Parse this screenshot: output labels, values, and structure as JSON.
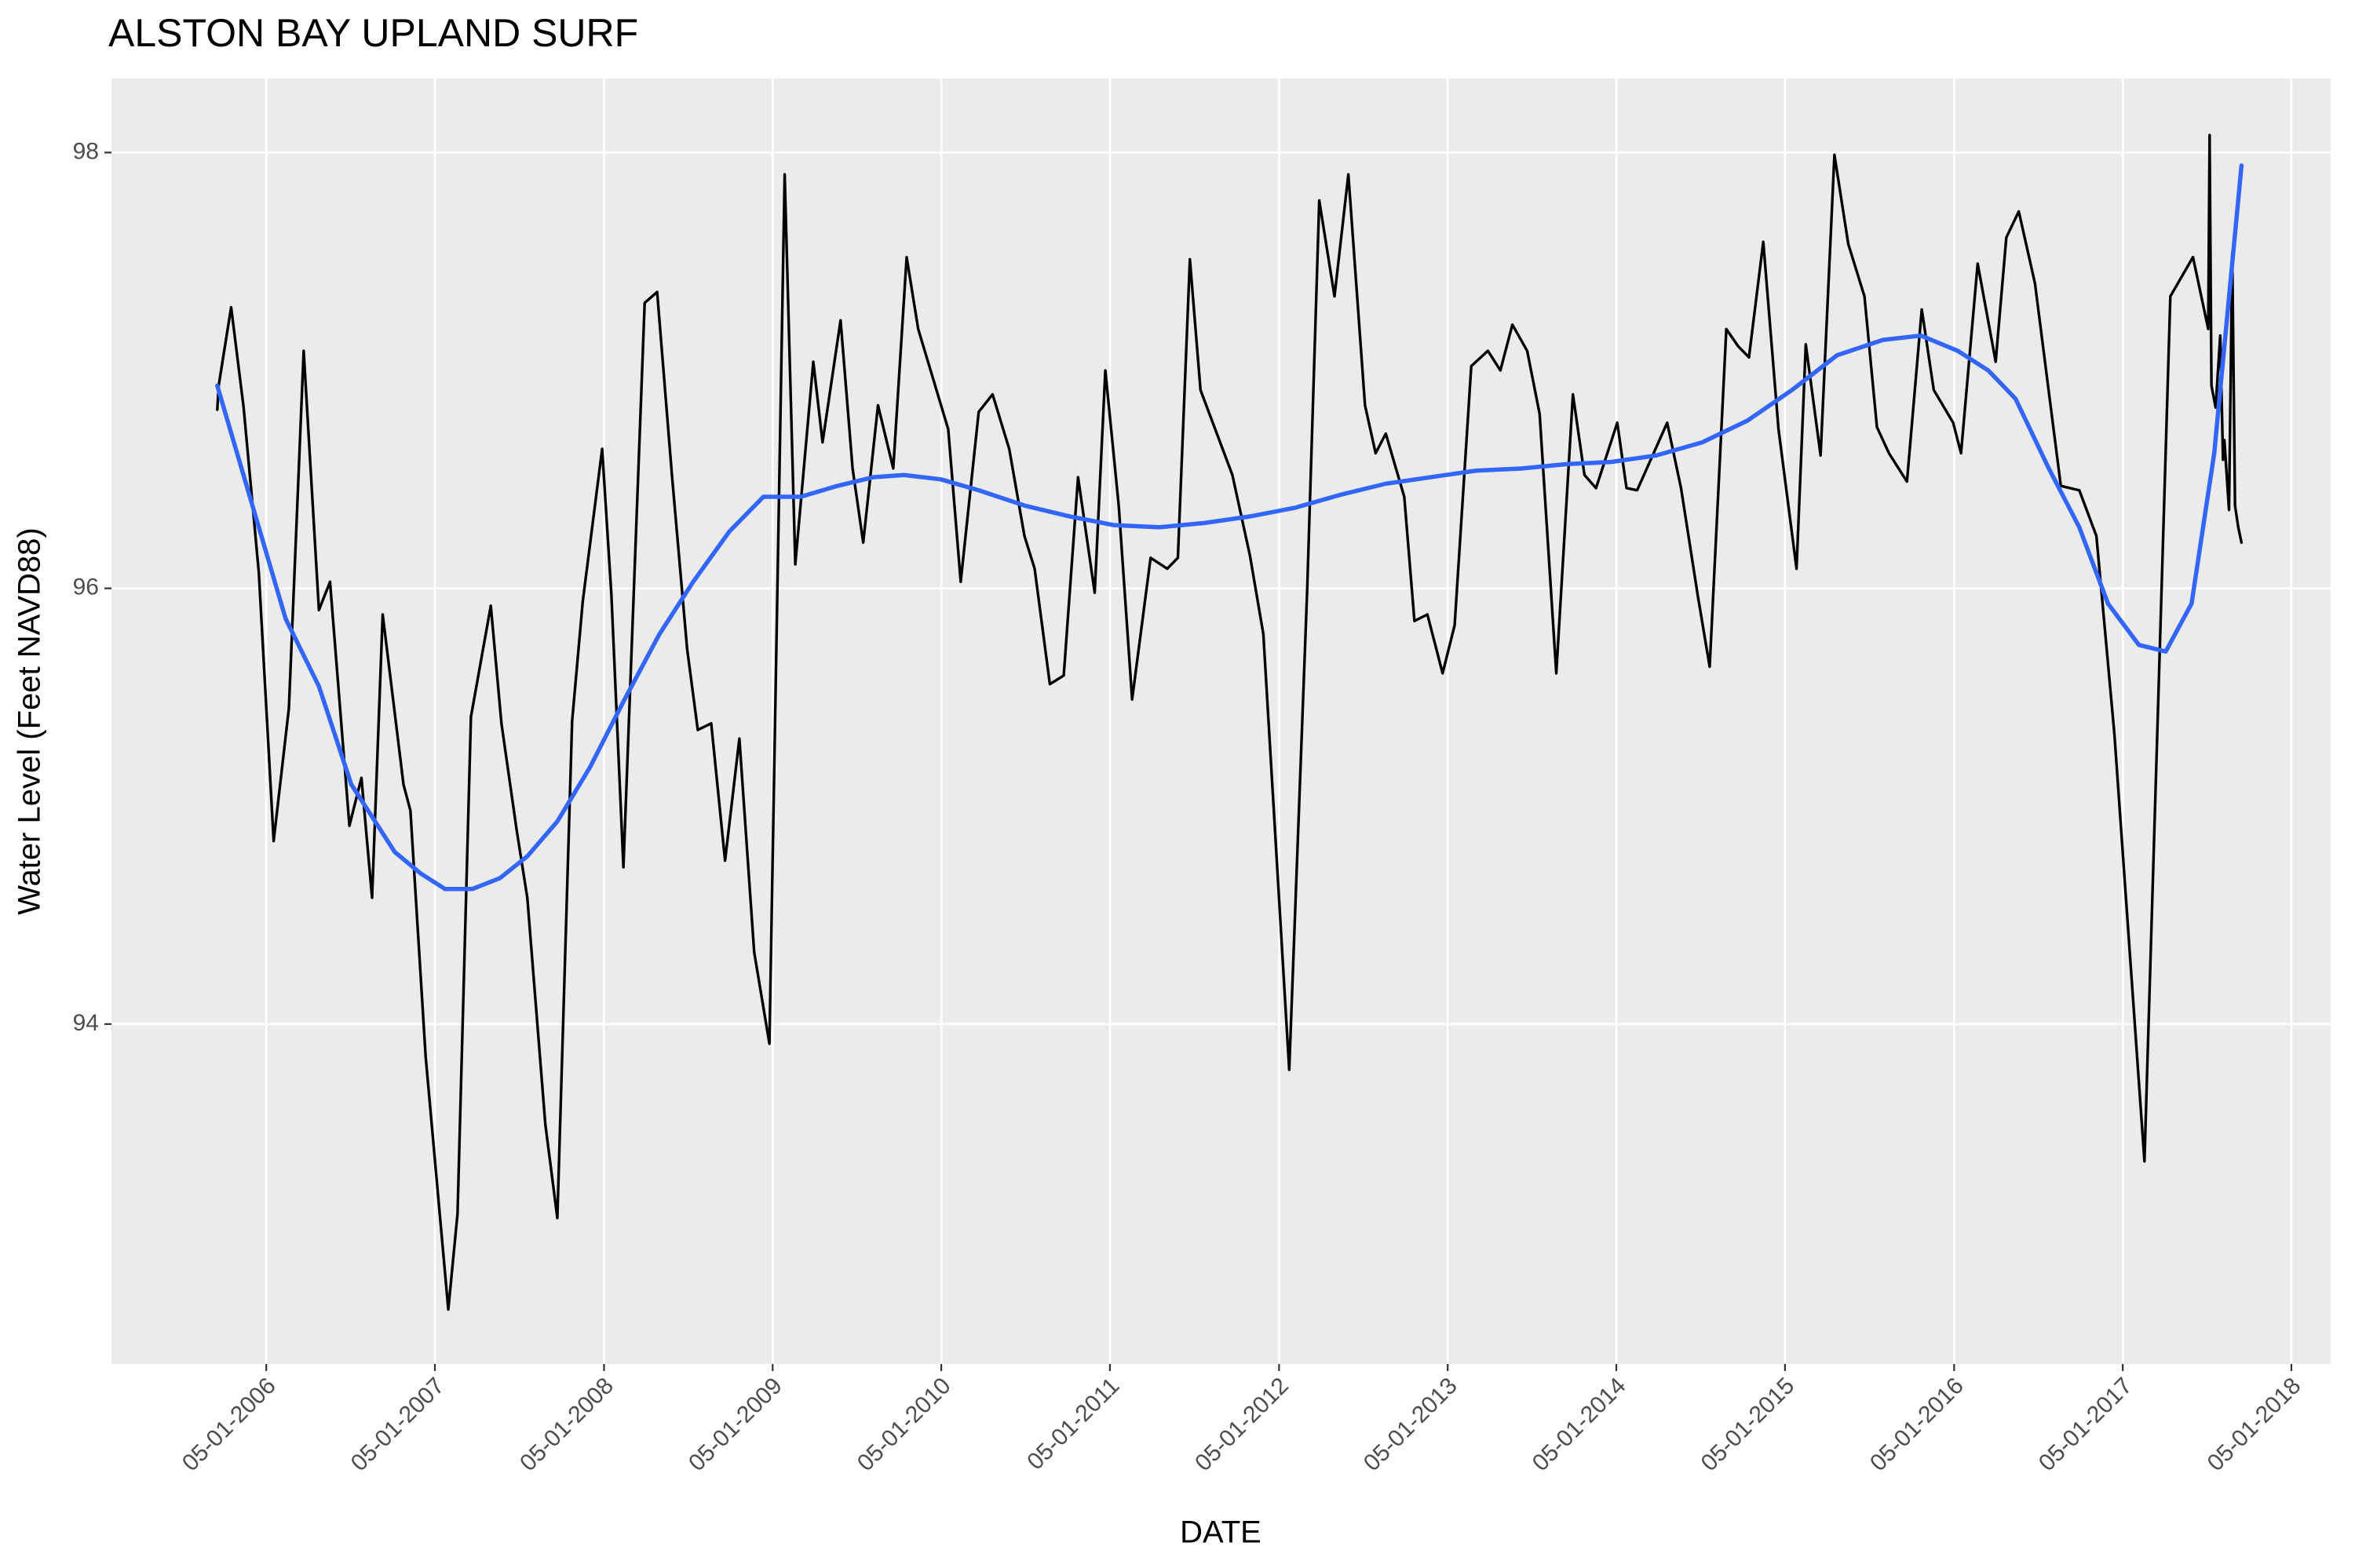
{
  "chart_data": {
    "type": "line",
    "title": "ALSTON BAY UPLAND SURF",
    "x_label": "DATE",
    "y_label": "Water Level (Feet NAVD88)",
    "xlim": [
      "2005-05-31",
      "2018-07-25"
    ],
    "ylim": [
      92.44,
      98.34
    ],
    "xticks": [
      {
        "value": "2006-05-01",
        "label": "05-01-2006"
      },
      {
        "value": "2007-05-01",
        "label": "05-01-2007"
      },
      {
        "value": "2008-05-01",
        "label": "05-01-2008"
      },
      {
        "value": "2009-05-01",
        "label": "05-01-2009"
      },
      {
        "value": "2010-05-01",
        "label": "05-01-2010"
      },
      {
        "value": "2011-05-01",
        "label": "05-01-2011"
      },
      {
        "value": "2012-05-01",
        "label": "05-01-2012"
      },
      {
        "value": "2013-05-01",
        "label": "05-01-2013"
      },
      {
        "value": "2014-05-01",
        "label": "05-01-2014"
      },
      {
        "value": "2015-05-01",
        "label": "05-01-2015"
      },
      {
        "value": "2016-05-01",
        "label": "05-01-2016"
      },
      {
        "value": "2017-05-01",
        "label": "05-01-2017"
      },
      {
        "value": "2018-05-01",
        "label": "05-01-2018"
      }
    ],
    "yticks": [
      94,
      96,
      98
    ],
    "grid": true,
    "series": [
      {
        "color": "#000000",
        "x": [
          "2006-01-15",
          "2006-01-18",
          "2006-02-14",
          "2006-03-13",
          "2006-04-15",
          "2006-05-17",
          "2006-06-19",
          "2006-07-21",
          "2006-08-23",
          "2006-09-16",
          "2006-10-28",
          "2006-11-23",
          "2006-12-16",
          "2007-01-08",
          "2007-02-22",
          "2007-03-09",
          "2007-04-11",
          "2007-05-30",
          "2007-06-19",
          "2007-07-18",
          "2007-08-30",
          "2007-09-22",
          "2007-10-25",
          "2007-11-17",
          "2007-12-26",
          "2008-01-21",
          "2008-02-22",
          "2008-03-16",
          "2008-04-27",
          "2008-05-17",
          "2008-06-12",
          "2008-07-28",
          "2008-08-24",
          "2008-09-25",
          "2008-10-28",
          "2008-11-20",
          "2008-12-19",
          "2009-01-18",
          "2009-02-18",
          "2009-03-22",
          "2009-04-24",
          "2009-05-27",
          "2009-06-19",
          "2009-07-28",
          "2009-08-17",
          "2009-09-25",
          "2009-10-21",
          "2009-11-13",
          "2009-12-15",
          "2010-01-17",
          "2010-02-15",
          "2010-03-12",
          "2010-05-16",
          "2010-06-12",
          "2010-07-21",
          "2010-08-20",
          "2010-09-25",
          "2010-10-28",
          "2010-11-19",
          "2010-12-22",
          "2011-01-21",
          "2011-02-21",
          "2011-03-29",
          "2011-04-21",
          "2011-05-20",
          "2011-06-18",
          "2011-07-28",
          "2011-09-02",
          "2011-09-25",
          "2011-10-21",
          "2011-11-13",
          "2012-01-21",
          "2012-02-28",
          "2012-03-28",
          "2012-05-23",
          "2012-07-01",
          "2012-07-27",
          "2012-08-29",
          "2012-09-28",
          "2012-11-03",
          "2012-11-26",
          "2012-12-18",
          "2013-01-27",
          "2013-02-18",
          "2013-03-18",
          "2013-04-20",
          "2013-05-16",
          "2013-06-21",
          "2013-07-27",
          "2013-08-23",
          "2013-09-18",
          "2013-10-20",
          "2013-11-16",
          "2013-12-22",
          "2014-01-27",
          "2014-02-21",
          "2014-03-18",
          "2014-05-03",
          "2014-05-23",
          "2014-06-15",
          "2014-08-19",
          "2014-09-18",
          "2014-10-24",
          "2014-11-19",
          "2014-12-25",
          "2015-01-20",
          "2015-02-12",
          "2015-03-15",
          "2015-04-17",
          "2015-05-26",
          "2015-06-15",
          "2015-07-17",
          "2015-08-16",
          "2015-09-15",
          "2015-10-20",
          "2015-11-16",
          "2015-12-12",
          "2016-01-20",
          "2016-02-21",
          "2016-03-18",
          "2016-04-29",
          "2016-05-16",
          "2016-06-21",
          "2016-07-30",
          "2016-08-22",
          "2016-09-18",
          "2016-10-23",
          "2016-12-18",
          "2017-01-27",
          "2017-03-05",
          "2017-04-13",
          "2017-06-17",
          "2017-08-12",
          "2017-09-30",
          "2017-11-02",
          "2017-11-05",
          "2017-11-09",
          "2017-11-18",
          "2017-11-28",
          "2017-12-04",
          "2017-12-07",
          "2017-12-17",
          "2017-12-24",
          "2017-12-30",
          "2018-01-06",
          "2018-01-13"
        ],
        "values": [
          96.82,
          96.93,
          97.29,
          96.83,
          96.07,
          94.84,
          95.45,
          97.09,
          95.9,
          96.03,
          94.91,
          95.13,
          94.58,
          95.88,
          95.1,
          94.98,
          93.85,
          92.69,
          93.13,
          95.41,
          95.92,
          95.38,
          94.89,
          94.58,
          93.54,
          93.11,
          95.39,
          95.94,
          96.64,
          95.97,
          94.72,
          97.31,
          97.36,
          96.52,
          95.72,
          95.35,
          95.38,
          94.75,
          95.31,
          94.33,
          93.91,
          97.9,
          96.11,
          97.04,
          96.67,
          97.23,
          96.55,
          96.21,
          96.84,
          96.55,
          97.52,
          97.19,
          96.73,
          96.03,
          96.81,
          96.89,
          96.64,
          96.24,
          96.09,
          95.56,
          95.6,
          96.51,
          95.98,
          97.0,
          96.38,
          95.49,
          96.14,
          96.09,
          96.14,
          97.51,
          96.91,
          96.52,
          96.15,
          95.79,
          93.79,
          96.0,
          97.78,
          97.34,
          97.9,
          96.84,
          96.62,
          96.71,
          96.42,
          95.85,
          95.88,
          95.61,
          95.83,
          97.02,
          97.09,
          97.0,
          97.21,
          97.09,
          96.8,
          95.61,
          96.89,
          96.52,
          96.46,
          96.76,
          96.46,
          96.45,
          96.76,
          96.46,
          95.97,
          95.64,
          97.19,
          97.11,
          97.06,
          97.59,
          96.73,
          96.09,
          97.12,
          96.61,
          97.99,
          97.58,
          97.34,
          96.74,
          96.62,
          96.49,
          97.28,
          96.91,
          96.76,
          96.62,
          97.49,
          97.04,
          97.61,
          97.73,
          97.4,
          96.47,
          96.45,
          96.24,
          95.33,
          93.37,
          97.34,
          97.52,
          97.19,
          98.08,
          96.93,
          96.83,
          97.16,
          96.59,
          96.68,
          96.36,
          97.54,
          96.38,
          96.28,
          96.21
        ]
      },
      {
        "color": "#3366FF",
        "x": [
          "2006-01-15",
          "2006-06-12",
          "2006-08-23",
          "2006-11-01",
          "2007-02-03",
          "2007-04-01",
          "2007-05-23",
          "2007-07-21",
          "2007-09-19",
          "2007-11-17",
          "2008-01-21",
          "2008-04-01",
          "2008-06-12",
          "2008-08-29",
          "2008-11-10",
          "2009-01-27",
          "2009-04-11",
          "2009-07-01",
          "2009-09-18",
          "2009-12-05",
          "2010-02-09",
          "2010-04-30",
          "2010-07-21",
          "2010-10-28",
          "2011-02-03",
          "2011-05-10",
          "2011-08-16",
          "2011-11-22",
          "2012-02-28",
          "2012-06-05",
          "2012-09-12",
          "2012-12-18",
          "2013-03-25",
          "2013-07-01",
          "2013-10-07",
          "2014-01-14",
          "2014-04-20",
          "2014-07-27",
          "2014-11-03",
          "2015-02-09",
          "2015-05-16",
          "2015-08-22",
          "2015-11-29",
          "2016-02-19",
          "2016-05-09",
          "2016-07-14",
          "2016-09-11",
          "2016-11-22",
          "2017-01-27",
          "2017-03-30",
          "2017-06-05",
          "2017-08-02",
          "2017-09-27",
          "2017-11-15",
          "2018-01-13"
        ],
        "values": [
          96.93,
          95.86,
          95.55,
          95.1,
          94.79,
          94.69,
          94.62,
          94.62,
          94.67,
          94.77,
          94.93,
          95.18,
          95.48,
          95.79,
          96.03,
          96.26,
          96.42,
          96.42,
          96.47,
          96.51,
          96.52,
          96.5,
          96.45,
          96.38,
          96.33,
          96.29,
          96.28,
          96.3,
          96.33,
          96.37,
          96.43,
          96.48,
          96.51,
          96.54,
          96.55,
          96.57,
          96.58,
          96.61,
          96.67,
          96.77,
          96.91,
          97.07,
          97.14,
          97.16,
          97.09,
          97.0,
          96.87,
          96.55,
          96.28,
          95.93,
          95.74,
          95.71,
          95.93,
          96.62,
          97.94
        ]
      }
    ]
  }
}
